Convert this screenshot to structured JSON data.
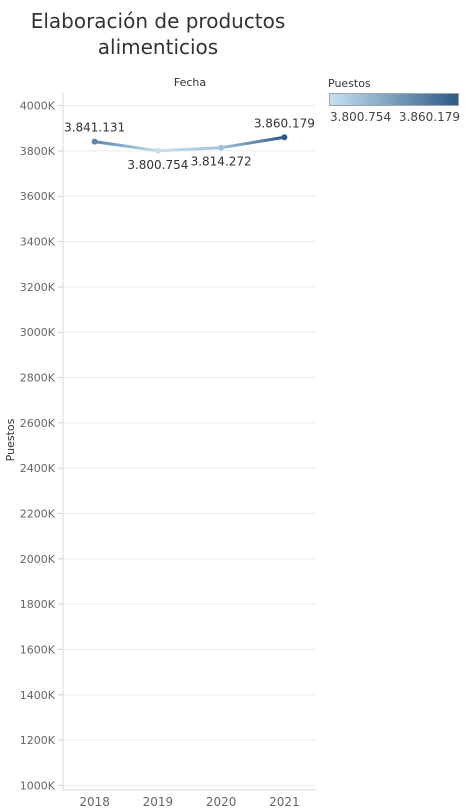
{
  "chart_data": {
    "type": "line",
    "title": "Elaboración de productos\nalimenticios",
    "column_header": "Fecha",
    "ylabel": "Puestos",
    "ylim": [
      980000,
      4060000
    ],
    "yticks": [
      {
        "value": 1000000,
        "label": "1000K"
      },
      {
        "value": 1200000,
        "label": "1200K"
      },
      {
        "value": 1400000,
        "label": "1400K"
      },
      {
        "value": 1600000,
        "label": "1600K"
      },
      {
        "value": 1800000,
        "label": "1800K"
      },
      {
        "value": 2000000,
        "label": "2000K"
      },
      {
        "value": 2200000,
        "label": "2200K"
      },
      {
        "value": 2400000,
        "label": "2400K"
      },
      {
        "value": 2600000,
        "label": "2600K"
      },
      {
        "value": 2800000,
        "label": "2800K"
      },
      {
        "value": 3000000,
        "label": "3000K"
      },
      {
        "value": 3200000,
        "label": "3200K"
      },
      {
        "value": 3400000,
        "label": "3400K"
      },
      {
        "value": 3600000,
        "label": "3600K"
      },
      {
        "value": 3800000,
        "label": "3800K"
      },
      {
        "value": 4000000,
        "label": "4000K"
      }
    ],
    "categories": [
      "2018",
      "2019",
      "2020",
      "2021"
    ],
    "values": [
      3841131,
      3800754,
      3814272,
      3860179
    ],
    "data_labels": [
      "3.841.131",
      "3.800.754",
      "3.814.272",
      "3.860.179"
    ],
    "data_label_position": [
      "above",
      "below",
      "below",
      "above"
    ],
    "grid": true,
    "legend": {
      "title": "Puestos",
      "min_label": "3.800.754",
      "max_label": "3.860.179",
      "min_color": "#c5e1f0",
      "max_color": "#2e5a87",
      "placement": "top-right"
    }
  }
}
